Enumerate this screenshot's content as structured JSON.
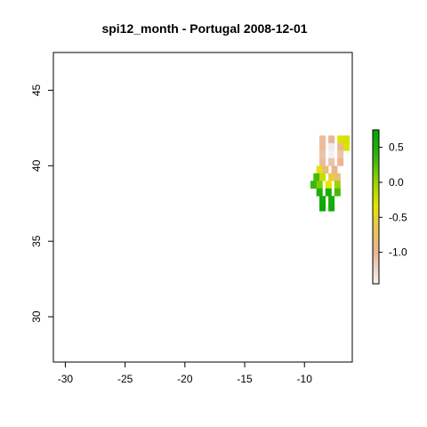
{
  "chart_data": {
    "type": "heatmap",
    "title": "spi12_month - Portugal 2008-12-01",
    "xlabel": "",
    "ylabel": "",
    "xlim": [
      -31,
      -6
    ],
    "ylim": [
      27,
      47.5
    ],
    "x_ticks": [
      -30,
      -25,
      -20,
      -15,
      -10
    ],
    "y_ticks": [
      30,
      35,
      40,
      45
    ],
    "x_tick_labels": [
      "-30",
      "-25",
      "-20",
      "-15",
      "-10"
    ],
    "y_tick_labels": [
      "30",
      "35",
      "40",
      "45"
    ],
    "cell_size_deg": 0.5,
    "colorbar": {
      "range": [
        -1.45,
        0.75
      ],
      "ticks": [
        0.5,
        0.0,
        -0.5,
        -1.0
      ],
      "tick_labels": [
        "0.5",
        "0.0",
        "-0.5",
        "-1.0"
      ],
      "colors": [
        "#f2f2f2",
        "#ebb495",
        "#e8c84a",
        "#e6e600",
        "#9bd400",
        "#2bb30f",
        "#00a600"
      ],
      "stops": [
        -1.45,
        -1.0,
        -0.6,
        -0.35,
        0.0,
        0.4,
        0.75
      ]
    },
    "cells": [
      {
        "lat": 41.75,
        "lon": -8.5,
        "value": -1.05
      },
      {
        "lat": 41.75,
        "lon": -7.75,
        "value": -1.0
      },
      {
        "lat": 41.75,
        "lon": -7.0,
        "value": -0.3
      },
      {
        "lat": 41.75,
        "lon": -6.5,
        "value": -0.25
      },
      {
        "lat": 41.25,
        "lon": -8.5,
        "value": -1.05
      },
      {
        "lat": 41.25,
        "lon": -7.75,
        "value": -1.4
      },
      {
        "lat": 41.25,
        "lon": -7.0,
        "value": -0.95
      },
      {
        "lat": 41.25,
        "lon": -6.5,
        "value": -0.3
      },
      {
        "lat": 40.75,
        "lon": -8.5,
        "value": -1.1
      },
      {
        "lat": 40.75,
        "lon": -7.75,
        "value": -1.45
      },
      {
        "lat": 40.75,
        "lon": -7.0,
        "value": -1.1
      },
      {
        "lat": 40.25,
        "lon": -8.5,
        "value": -1.05
      },
      {
        "lat": 40.25,
        "lon": -7.75,
        "value": -1.1
      },
      {
        "lat": 40.25,
        "lon": -7.0,
        "value": -1.0
      },
      {
        "lat": 39.75,
        "lon": -8.75,
        "value": -0.4
      },
      {
        "lat": 39.75,
        "lon": -8.25,
        "value": -0.9
      },
      {
        "lat": 39.75,
        "lon": -7.5,
        "value": -1.0
      },
      {
        "lat": 39.25,
        "lon": -9.0,
        "value": 0.3
      },
      {
        "lat": 39.25,
        "lon": -8.5,
        "value": -0.2
      },
      {
        "lat": 39.25,
        "lon": -7.75,
        "value": -0.55
      },
      {
        "lat": 39.25,
        "lon": -7.25,
        "value": -0.8
      },
      {
        "lat": 38.75,
        "lon": -9.25,
        "value": 0.35
      },
      {
        "lat": 38.75,
        "lon": -8.75,
        "value": 0.1
      },
      {
        "lat": 38.75,
        "lon": -8.0,
        "value": -0.35
      },
      {
        "lat": 38.75,
        "lon": -7.25,
        "value": 0.0
      },
      {
        "lat": 38.25,
        "lon": -8.75,
        "value": 0.5
      },
      {
        "lat": 38.25,
        "lon": -8.0,
        "value": 0.55
      },
      {
        "lat": 38.25,
        "lon": -7.25,
        "value": 0.3
      },
      {
        "lat": 37.75,
        "lon": -8.5,
        "value": 0.6
      },
      {
        "lat": 37.75,
        "lon": -7.75,
        "value": 0.55
      },
      {
        "lat": 37.25,
        "lon": -8.5,
        "value": 0.65
      },
      {
        "lat": 37.25,
        "lon": -7.75,
        "value": 0.6
      }
    ]
  }
}
